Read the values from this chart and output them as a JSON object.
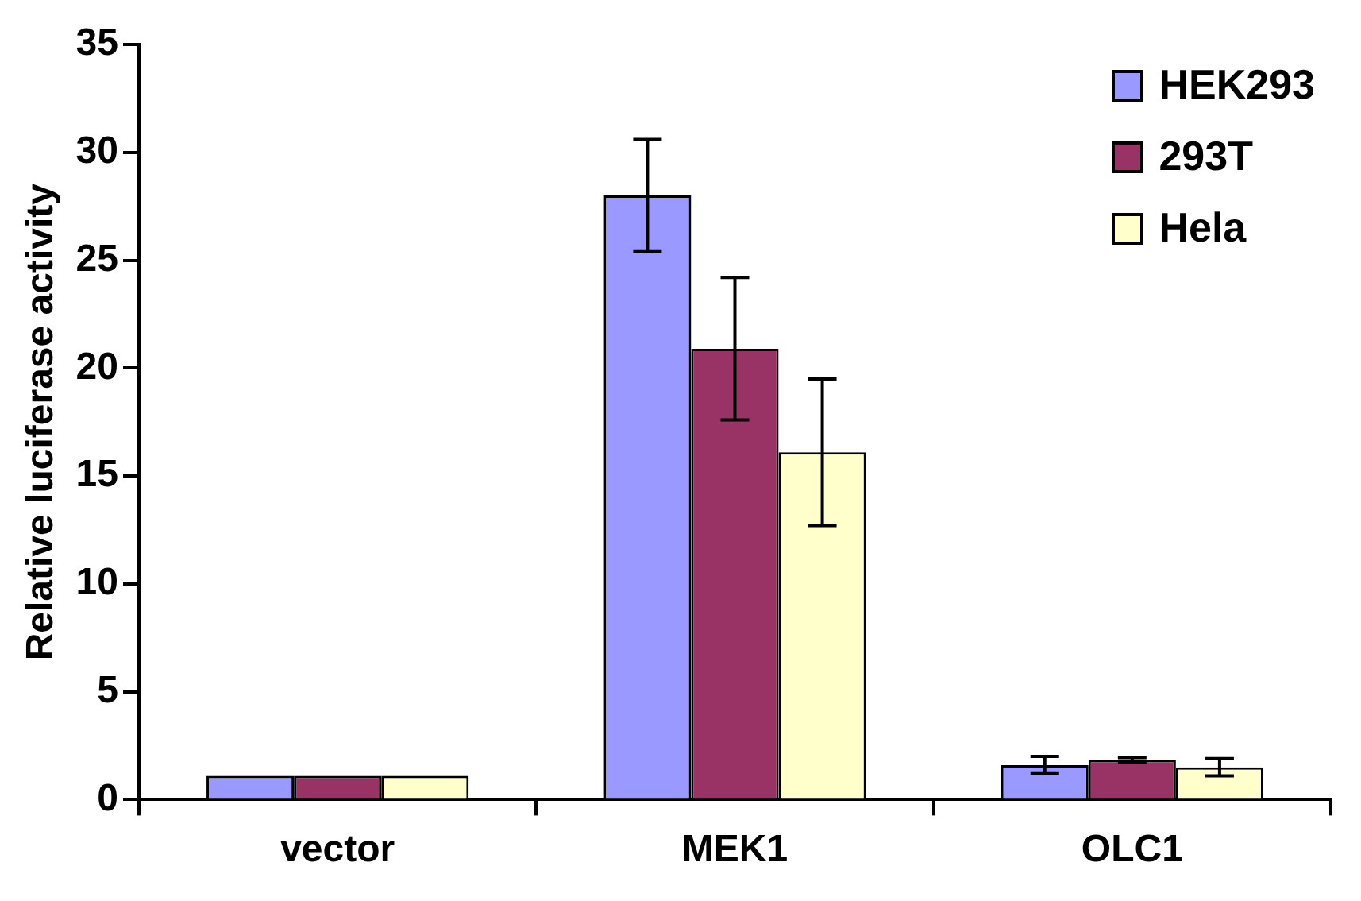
{
  "chart_data": {
    "type": "bar",
    "ylabel": "Relative luciferase activity",
    "categories": [
      "vector",
      "MEK1",
      "OLC1"
    ],
    "series": [
      {
        "name": "HEK293",
        "color": "#9999ff",
        "values": [
          1.1,
          28,
          1.6
        ],
        "errors": [
          null,
          2.6,
          0.4
        ]
      },
      {
        "name": "293T",
        "color": "#993366",
        "values": [
          1.1,
          20.9,
          1.85
        ],
        "errors": [
          null,
          3.3,
          0.1
        ]
      },
      {
        "name": "Hela",
        "color": "#ffffcc",
        "values": [
          1.1,
          16.1,
          1.5
        ],
        "errors": [
          null,
          3.4,
          0.4
        ]
      }
    ],
    "ylim": [
      0,
      35
    ],
    "yticks": [
      0,
      5,
      10,
      15,
      20,
      25,
      30,
      35
    ],
    "grid": false,
    "legend": "top right"
  }
}
